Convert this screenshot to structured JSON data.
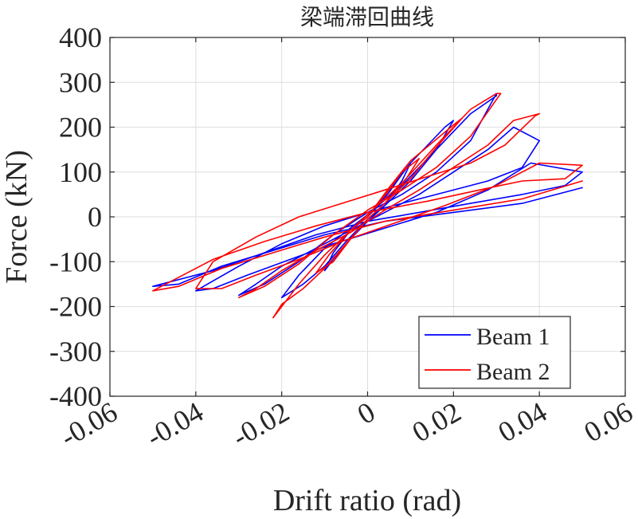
{
  "chart_data": {
    "type": "line",
    "title": "梁端滞回曲线",
    "xlabel": "Drift ratio (rad)",
    "ylabel": "Force (kN)",
    "xlim": [
      -0.06,
      0.06
    ],
    "ylim": [
      -400,
      400
    ],
    "xticks": [
      -0.06,
      -0.04,
      -0.02,
      0,
      0.02,
      0.04,
      0.06
    ],
    "xtick_labels": [
      "-0.06",
      "-0.04",
      "-0.02",
      "0",
      "0.02",
      "0.04",
      "0.06"
    ],
    "yticks": [
      -400,
      -300,
      -200,
      -100,
      0,
      100,
      200,
      300,
      400
    ],
    "ytick_labels": [
      "-400",
      "-300",
      "-200",
      "-100",
      "0",
      "100",
      "200",
      "300",
      "400"
    ],
    "grid": true,
    "legend_position": "bottom-right",
    "series": [
      {
        "name": "Beam 1",
        "color": "#0000ff",
        "x": [
          0,
          0.002,
          0.005,
          0.008,
          0.01,
          0.008,
          0.004,
          0,
          -0.004,
          -0.008,
          -0.01,
          -0.008,
          -0.004,
          0,
          0.005,
          0.01,
          0.014,
          0.018,
          0.02,
          0.016,
          0.01,
          0.004,
          0,
          -0.005,
          -0.01,
          -0.015,
          -0.02,
          -0.016,
          -0.01,
          -0.004,
          0,
          0.008,
          0.016,
          0.024,
          0.03,
          0.03,
          0.024,
          0.016,
          0.008,
          0,
          -0.008,
          -0.016,
          -0.024,
          -0.03,
          -0.026,
          -0.02,
          -0.012,
          -0.004,
          0.004,
          0.012,
          0.02,
          0.028,
          0.034,
          0.04,
          0.036,
          0.028,
          0.018,
          0.008,
          0,
          -0.01,
          -0.02,
          -0.03,
          -0.04,
          -0.036,
          -0.028,
          -0.018,
          -0.008,
          0.004,
          0.016,
          0.028,
          0.038,
          0.05,
          0.046,
          0.036,
          0.024,
          0.012,
          0,
          -0.012,
          -0.024,
          -0.036,
          -0.05,
          -0.044,
          -0.034,
          -0.022,
          -0.01,
          0.004,
          0.02,
          0.036,
          0.05
        ],
        "y": [
          0,
          20,
          55,
          95,
          120,
          80,
          25,
          -10,
          -50,
          -95,
          -120,
          -80,
          -30,
          0,
          60,
          120,
          160,
          200,
          215,
          150,
          80,
          25,
          -5,
          -55,
          -110,
          -150,
          -180,
          -130,
          -70,
          -25,
          5,
          70,
          150,
          230,
          270,
          275,
          170,
          100,
          50,
          10,
          -40,
          -100,
          -150,
          -175,
          -150,
          -110,
          -70,
          -30,
          10,
          50,
          100,
          150,
          200,
          170,
          110,
          80,
          55,
          30,
          10,
          -20,
          -60,
          -110,
          -165,
          -160,
          -130,
          -95,
          -60,
          -25,
          10,
          60,
          120,
          100,
          70,
          50,
          30,
          10,
          -10,
          -40,
          -80,
          -120,
          -155,
          -150,
          -110,
          -75,
          -40,
          -10,
          10,
          30,
          65
        ]
      },
      {
        "name": "Beam 2",
        "color": "#ff0000",
        "x": [
          0,
          0.002,
          0.005,
          0.008,
          0.012,
          0.009,
          0.004,
          0,
          -0.004,
          -0.008,
          -0.012,
          -0.009,
          -0.004,
          0,
          0.005,
          0.01,
          0.015,
          0.02,
          0.022,
          0.016,
          0.01,
          0.004,
          0,
          -0.005,
          -0.01,
          -0.015,
          -0.02,
          -0.022,
          -0.016,
          -0.01,
          -0.004,
          0,
          0.008,
          0.016,
          0.024,
          0.03,
          0.031,
          0.024,
          0.016,
          0.008,
          0,
          -0.008,
          -0.016,
          -0.024,
          -0.03,
          -0.026,
          -0.02,
          -0.012,
          -0.004,
          0.004,
          0.012,
          0.02,
          0.028,
          0.034,
          0.04,
          0.039,
          0.032,
          0.024,
          0.014,
          0.004,
          -0.006,
          -0.016,
          -0.026,
          -0.036,
          -0.04,
          -0.034,
          -0.026,
          -0.016,
          -0.006,
          0.006,
          0.018,
          0.03,
          0.04,
          0.05,
          0.046,
          0.036,
          0.026,
          0.014,
          0,
          -0.012,
          -0.024,
          -0.036,
          -0.05,
          -0.044,
          -0.034,
          -0.022,
          -0.01,
          0.004,
          0.02,
          0.036,
          0.05
        ],
        "y": [
          0,
          25,
          60,
          100,
          130,
          85,
          30,
          -5,
          -50,
          -100,
          -125,
          -85,
          -30,
          0,
          65,
          125,
          165,
          205,
          220,
          155,
          85,
          30,
          -5,
          -60,
          -115,
          -160,
          -195,
          -225,
          -150,
          -85,
          -30,
          5,
          75,
          160,
          240,
          275,
          275,
          180,
          110,
          60,
          15,
          -40,
          -105,
          -155,
          -180,
          -160,
          -120,
          -75,
          -35,
          15,
          60,
          110,
          160,
          215,
          230,
          225,
          160,
          120,
          90,
          60,
          30,
          0,
          -45,
          -100,
          -160,
          -160,
          -130,
          -95,
          -55,
          -15,
          25,
          70,
          120,
          115,
          85,
          80,
          60,
          35,
          10,
          -20,
          -55,
          -95,
          -165,
          -155,
          -115,
          -80,
          -45,
          -10,
          15,
          40,
          80
        ]
      }
    ]
  }
}
